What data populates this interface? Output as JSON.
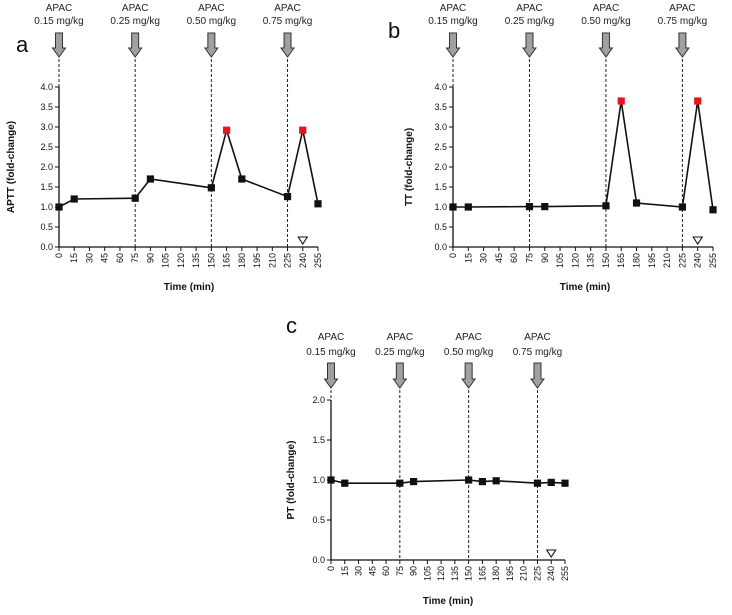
{
  "colors": {
    "line": "#111111",
    "peak": "#e8141b",
    "arrow_fill": "#a0a0a0",
    "arrow_stroke": "#333333"
  },
  "chart_data": [
    {
      "type": "line",
      "panel": "a",
      "ylabel": "APTT (fold-change)",
      "xlabel": "Time (min)",
      "xlim": [
        0,
        255
      ],
      "ylim": [
        0,
        4
      ],
      "x_ticks": [
        0,
        15,
        30,
        45,
        60,
        75,
        90,
        105,
        120,
        135,
        150,
        165,
        180,
        195,
        210,
        225,
        240,
        255
      ],
      "y_ticks": [
        "0.0",
        "0.5",
        "1.0",
        "1.5",
        "2.0",
        "2.5",
        "3.0",
        "3.5",
        "4.0"
      ],
      "doses": [
        {
          "time": 0,
          "label": "APAC",
          "dose": "0.15 mg/kg"
        },
        {
          "time": 75,
          "label": "APAC",
          "dose": "0.25 mg/kg"
        },
        {
          "time": 150,
          "label": "APAC",
          "dose": "0.50 mg/kg"
        },
        {
          "time": 225,
          "label": "APAC",
          "dose": "0.75 mg/kg"
        }
      ],
      "series": [
        {
          "name": "APTT",
          "points": [
            {
              "x": 0,
              "y": 1.0
            },
            {
              "x": 15,
              "y": 1.2
            },
            {
              "x": 75,
              "y": 1.22
            },
            {
              "x": 90,
              "y": 1.7
            },
            {
              "x": 150,
              "y": 1.48
            },
            {
              "x": 165,
              "y": 2.92,
              "highlight": true
            },
            {
              "x": 180,
              "y": 1.7
            },
            {
              "x": 225,
              "y": 1.26
            },
            {
              "x": 240,
              "y": 2.92,
              "highlight": true
            },
            {
              "x": 255,
              "y": 1.08
            }
          ]
        }
      ],
      "marker_triangle": {
        "x": 240
      }
    },
    {
      "type": "line",
      "panel": "b",
      "ylabel": "TT (fold-change)",
      "xlabel": "Time (min)",
      "xlim": [
        0,
        255
      ],
      "ylim": [
        0,
        4
      ],
      "x_ticks": [
        0,
        15,
        30,
        45,
        60,
        75,
        90,
        105,
        120,
        135,
        150,
        165,
        180,
        195,
        210,
        225,
        240,
        255
      ],
      "y_ticks": [
        "0.0",
        "0.5",
        "1.0",
        "1.5",
        "2.0",
        "2.5",
        "3.0",
        "3.5",
        "4.0"
      ],
      "doses": [
        {
          "time": 0,
          "label": "APAC",
          "dose": "0.15 mg/kg"
        },
        {
          "time": 75,
          "label": "APAC",
          "dose": "0.25 mg/kg"
        },
        {
          "time": 150,
          "label": "APAC",
          "dose": "0.50 mg/kg"
        },
        {
          "time": 225,
          "label": "APAC",
          "dose": "0.75 mg/kg"
        }
      ],
      "series": [
        {
          "name": "TT",
          "points": [
            {
              "x": 0,
              "y": 1.0
            },
            {
              "x": 15,
              "y": 1.0
            },
            {
              "x": 75,
              "y": 1.01
            },
            {
              "x": 90,
              "y": 1.01
            },
            {
              "x": 150,
              "y": 1.03
            },
            {
              "x": 165,
              "y": 3.65,
              "highlight": true
            },
            {
              "x": 180,
              "y": 1.1
            },
            {
              "x": 225,
              "y": 1.0
            },
            {
              "x": 240,
              "y": 3.65,
              "highlight": true
            },
            {
              "x": 255,
              "y": 0.93
            }
          ]
        }
      ],
      "marker_triangle": {
        "x": 240
      }
    },
    {
      "type": "line",
      "panel": "c",
      "ylabel": "PT (fold-change)",
      "xlabel": "Time (min)",
      "xlim": [
        0,
        255
      ],
      "ylim": [
        0,
        2
      ],
      "x_ticks": [
        0,
        15,
        30,
        45,
        60,
        75,
        90,
        105,
        120,
        135,
        150,
        165,
        180,
        195,
        210,
        225,
        240,
        255
      ],
      "y_ticks": [
        "0.0",
        "0.5",
        "1.0",
        "1.5",
        "2.0"
      ],
      "doses": [
        {
          "time": 0,
          "label": "APAC",
          "dose": "0.15 mg/kg"
        },
        {
          "time": 75,
          "label": "APAC",
          "dose": "0.25 mg/kg"
        },
        {
          "time": 150,
          "label": "APAC",
          "dose": "0.50 mg/kg"
        },
        {
          "time": 225,
          "label": "APAC",
          "dose": "0.75 mg/kg"
        }
      ],
      "series": [
        {
          "name": "PT",
          "points": [
            {
              "x": 0,
              "y": 1.0
            },
            {
              "x": 15,
              "y": 0.96
            },
            {
              "x": 75,
              "y": 0.96
            },
            {
              "x": 90,
              "y": 0.98
            },
            {
              "x": 150,
              "y": 1.0
            },
            {
              "x": 165,
              "y": 0.98
            },
            {
              "x": 180,
              "y": 0.99
            },
            {
              "x": 225,
              "y": 0.96
            },
            {
              "x": 240,
              "y": 0.97
            },
            {
              "x": 255,
              "y": 0.96
            }
          ]
        }
      ],
      "marker_triangle": {
        "x": 240
      }
    }
  ]
}
